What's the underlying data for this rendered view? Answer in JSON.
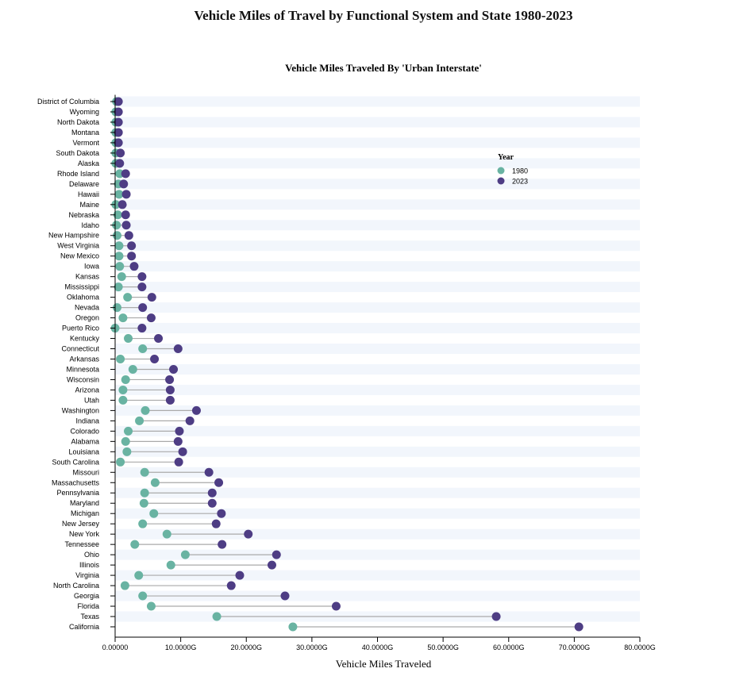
{
  "page_title": "Vehicle Miles of Travel by Functional System and State 1980-2023",
  "chart_data": {
    "type": "dumbbell",
    "title": "Vehicle Miles Traveled By 'Urban Interstate'",
    "xlabel": "Vehicle Miles Traveled",
    "ylabel": "",
    "xlim": [
      0,
      80
    ],
    "x_unit": "G",
    "x_ticks": [
      "0.00000",
      "10.0000G",
      "20.0000G",
      "30.0000G",
      "40.0000G",
      "50.0000G",
      "60.0000G",
      "70.0000G",
      "80.0000G"
    ],
    "legend": {
      "title": "Year",
      "position": "top-right",
      "entries": [
        "1980",
        "2023"
      ]
    },
    "colors": {
      "1980": "#69b3a2",
      "2023": "#4e3d84",
      "connector": "#aaaaaa",
      "band": "#f2f6fc"
    },
    "categories": [
      "District of Columbia",
      "Wyoming",
      "North Dakota",
      "Montana",
      "Vermont",
      "South Dakota",
      "Alaska",
      "Rhode Island",
      "Delaware",
      "Hawaii",
      "Maine",
      "Nebraska",
      "Idaho",
      "New Hampshire",
      "West Virginia",
      "New Mexico",
      "Iowa",
      "Kansas",
      "Mississippi",
      "Oklahoma",
      "Nevada",
      "Oregon",
      "Puerto Rico",
      "Kentucky",
      "Connecticut",
      "Arkansas",
      "Minnesota",
      "Wisconsin",
      "Arizona",
      "Utah",
      "Washington",
      "Indiana",
      "Colorado",
      "Alabama",
      "Louisiana",
      "South Carolina",
      "Missouri",
      "Massachusetts",
      "Pennsylvania",
      "Maryland",
      "Michigan",
      "New Jersey",
      "New York",
      "Tennessee",
      "Ohio",
      "Illinois",
      "Virginia",
      "North Carolina",
      "Georgia",
      "Florida",
      "Texas",
      "California"
    ],
    "series": [
      {
        "name": "1980",
        "values": [
          0.2,
          0.1,
          0.1,
          0.1,
          0.1,
          0.1,
          0.1,
          0.7,
          0.5,
          0.6,
          0.1,
          0.4,
          0.2,
          0.3,
          0.6,
          0.6,
          0.7,
          1.0,
          0.5,
          1.9,
          0.3,
          1.2,
          0.0,
          2.0,
          4.2,
          0.8,
          2.7,
          1.6,
          1.2,
          1.2,
          4.6,
          3.7,
          2.0,
          1.6,
          1.8,
          0.8,
          4.5,
          6.1,
          4.5,
          4.4,
          5.9,
          4.2,
          7.9,
          3.0,
          10.7,
          8.5,
          3.6,
          1.5,
          4.2,
          5.5,
          15.5,
          27.1
        ]
      },
      {
        "name": "2023",
        "values": [
          0.5,
          0.5,
          0.5,
          0.5,
          0.5,
          0.8,
          0.7,
          1.6,
          1.3,
          1.7,
          1.1,
          1.6,
          1.7,
          2.1,
          2.5,
          2.5,
          2.9,
          4.1,
          4.1,
          5.6,
          4.2,
          5.5,
          4.1,
          6.6,
          9.6,
          6.0,
          8.9,
          8.3,
          8.4,
          8.4,
          12.4,
          11.4,
          9.8,
          9.6,
          10.3,
          9.7,
          14.3,
          15.8,
          14.8,
          14.8,
          16.2,
          15.4,
          20.3,
          16.3,
          24.6,
          23.9,
          19.0,
          17.7,
          25.9,
          33.7,
          58.1,
          70.7
        ]
      }
    ]
  }
}
